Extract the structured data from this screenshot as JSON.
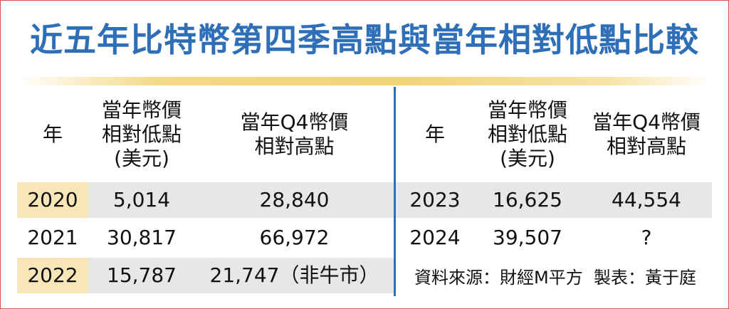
{
  "title": "近五年比特幣第四季高點與當年相對低點比較",
  "headers_left": {
    "year": "年",
    "low": "當年幣價\n相對低點\n(美元)",
    "high": "當年Q4幣價\n相對高點"
  },
  "headers_right": {
    "year": "年",
    "low": "當年幣價\n相對低點\n(美元)",
    "high": "當年Q4幣價\n相對高點"
  },
  "rows_left": [
    {
      "year": "2020",
      "low": "5,014",
      "high": "28,840"
    },
    {
      "year": "2021",
      "low": "30,817",
      "high": "66,972"
    },
    {
      "year": "2022",
      "low": "15,787",
      "high": "21,747（非牛市）"
    }
  ],
  "rows_right": [
    {
      "year": "2023",
      "low": "16,625",
      "high": "44,554"
    },
    {
      "year": "2024",
      "low": "39,507",
      "high": "?"
    }
  ],
  "source_note": "資料來源：財經M平方  製表：黃于庭",
  "colors": {
    "title": "#2e6fb8",
    "divider": "#2e6fb8",
    "row_band_gray": "#e6e7e8",
    "row_band_gold": "#f8e6b8",
    "rule": "#f1d37a",
    "frame": "#d9534f"
  }
}
